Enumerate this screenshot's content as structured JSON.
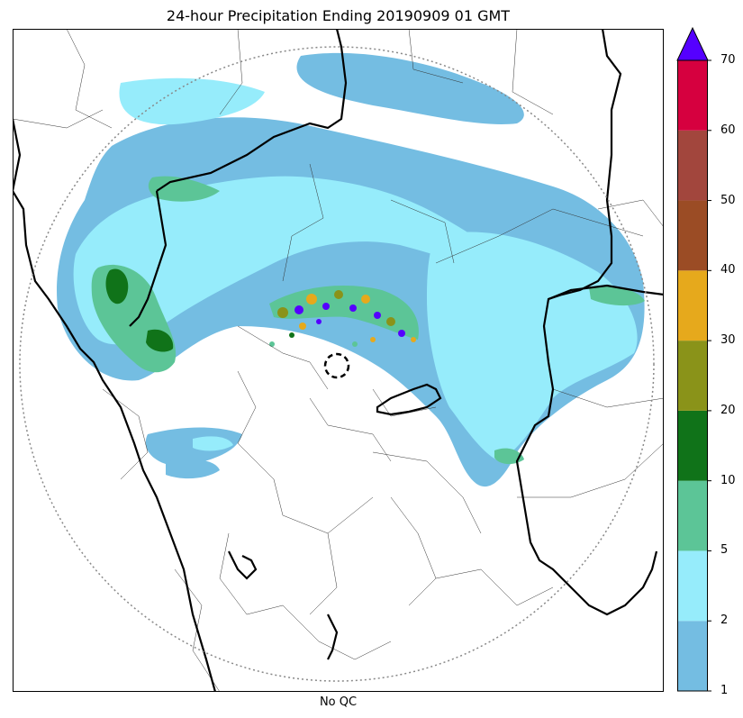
{
  "title": "24-hour Precipitation Ending 20190909 01 GMT",
  "xlabel": "No QC",
  "colorbar": {
    "levels": [
      1,
      2,
      5,
      10,
      20,
      30,
      40,
      50,
      60,
      70
    ],
    "labels": [
      "1",
      "2",
      "5",
      "10",
      "20",
      "30",
      "40",
      "50",
      "60",
      "70"
    ],
    "colors": [
      "#74bde2",
      "#96ecfb",
      "#5cc597",
      "#107319",
      "#8a9319",
      "#e6a91c",
      "#9b4c25",
      "#a2463d",
      "#d6003f"
    ],
    "extend_color": "#5500ff"
  },
  "map": {
    "radar_ring_style": "dotted",
    "radar_site_marker": "dashed-circle"
  }
}
